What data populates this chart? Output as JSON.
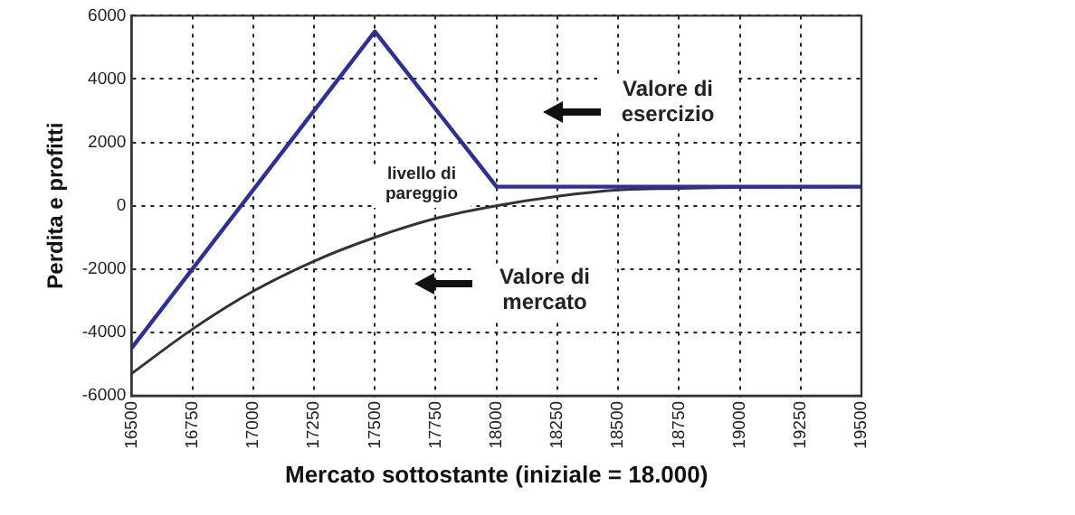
{
  "chart_data": {
    "type": "line",
    "xlabel": "Mercato sottostante (iniziale = 18.000)",
    "ylabel": "Perdita e profitti",
    "xlim": [
      16500,
      19500
    ],
    "xticks": [
      16500,
      16750,
      17000,
      17250,
      17500,
      17750,
      18000,
      18250,
      18500,
      18750,
      19000,
      19250,
      19500
    ],
    "ylim": [
      -6000,
      6000
    ],
    "yticks": [
      -6000,
      -4000,
      -2000,
      0,
      2000,
      4000,
      6000
    ],
    "grid": true,
    "marker": "none",
    "line_style": "solid",
    "series": [
      {
        "color": "#2e3192",
        "x": [
          16500,
          17500,
          18000,
          19500
        ],
        "values": [
          -4500,
          5500,
          600,
          600
        ]
      },
      {
        "color": "#333333",
        "x": [
          16500,
          16750,
          17000,
          17250,
          17500,
          17750,
          18000,
          18250,
          18500,
          18750,
          19000,
          19500
        ],
        "values": [
          -5300,
          -3900,
          -2700,
          -1750,
          -1000,
          -400,
          0,
          300,
          500,
          550,
          580,
          600
        ]
      }
    ],
    "annotations": [
      "Valore di esercizio",
      "Valore di mercato",
      "livello di pareggio"
    ]
  }
}
